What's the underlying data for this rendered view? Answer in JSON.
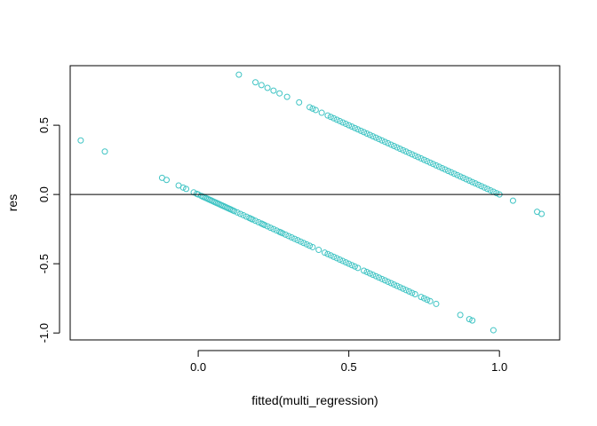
{
  "chart_data": {
    "type": "scatter",
    "title": "",
    "xlabel": "fitted(multi_regression)",
    "ylabel": "res",
    "xlim": [
      -0.425,
      1.2
    ],
    "ylim": [
      -1.05,
      0.93
    ],
    "xticks": [
      0.0,
      0.5,
      1.0
    ],
    "xtick_labels": [
      "0.0",
      "0.5",
      "1.0"
    ],
    "yticks": [
      -1.0,
      -0.5,
      0.0,
      0.5
    ],
    "ytick_labels": [
      "-1.0",
      "-0.5",
      "0.0",
      "0.5"
    ],
    "hline": 0,
    "grid": false,
    "legend": "none",
    "point_color": "#40C4C4",
    "series": [
      {
        "x": [
          -0.39,
          -0.31,
          -0.12,
          -0.105,
          -0.065,
          -0.05,
          -0.04,
          -0.015,
          -0.005,
          0.0,
          0.01,
          0.015,
          0.02,
          0.025,
          0.03,
          0.035,
          0.04,
          0.045,
          0.05,
          0.055,
          0.06,
          0.065,
          0.07,
          0.075,
          0.08,
          0.085,
          0.09,
          0.095,
          0.1,
          0.105,
          0.11,
          0.115,
          0.12,
          0.13,
          0.14,
          0.15,
          0.16,
          0.17,
          0.175,
          0.18,
          0.19,
          0.2,
          0.21,
          0.215,
          0.22,
          0.23,
          0.24,
          0.25,
          0.26,
          0.27,
          0.275,
          0.28,
          0.29,
          0.3,
          0.31,
          0.32,
          0.33,
          0.34,
          0.35,
          0.36,
          0.37,
          0.38,
          0.4,
          0.42,
          0.43,
          0.44,
          0.45,
          0.46,
          0.47,
          0.48,
          0.49,
          0.5,
          0.51,
          0.52,
          0.53,
          0.55,
          0.56,
          0.57,
          0.58,
          0.59,
          0.6,
          0.61,
          0.62,
          0.63,
          0.64,
          0.65,
          0.66,
          0.67,
          0.68,
          0.69,
          0.7,
          0.71,
          0.72,
          0.74,
          0.75,
          0.76,
          0.77,
          0.79,
          0.87,
          0.9,
          0.91,
          0.98
        ],
        "y": [
          0.39,
          0.31,
          0.12,
          0.105,
          0.065,
          0.05,
          0.04,
          0.015,
          0.005,
          0.0,
          -0.01,
          -0.015,
          -0.02,
          -0.025,
          -0.03,
          -0.035,
          -0.04,
          -0.045,
          -0.05,
          -0.055,
          -0.06,
          -0.065,
          -0.07,
          -0.075,
          -0.08,
          -0.085,
          -0.09,
          -0.095,
          -0.1,
          -0.105,
          -0.11,
          -0.115,
          -0.12,
          -0.13,
          -0.14,
          -0.15,
          -0.16,
          -0.17,
          -0.175,
          -0.18,
          -0.19,
          -0.2,
          -0.21,
          -0.215,
          -0.22,
          -0.23,
          -0.24,
          -0.25,
          -0.26,
          -0.27,
          -0.275,
          -0.28,
          -0.29,
          -0.3,
          -0.31,
          -0.32,
          -0.33,
          -0.34,
          -0.35,
          -0.36,
          -0.37,
          -0.38,
          -0.4,
          -0.42,
          -0.43,
          -0.44,
          -0.45,
          -0.46,
          -0.47,
          -0.48,
          -0.49,
          -0.5,
          -0.51,
          -0.52,
          -0.53,
          -0.55,
          -0.56,
          -0.57,
          -0.58,
          -0.59,
          -0.6,
          -0.61,
          -0.62,
          -0.63,
          -0.64,
          -0.65,
          -0.66,
          -0.67,
          -0.68,
          -0.69,
          -0.7,
          -0.71,
          -0.72,
          -0.74,
          -0.75,
          -0.76,
          -0.77,
          -0.79,
          -0.87,
          -0.9,
          -0.91,
          -0.98
        ]
      },
      {
        "x": [
          0.135,
          0.19,
          0.21,
          0.23,
          0.25,
          0.27,
          0.295,
          0.335,
          0.37,
          0.38,
          0.39,
          0.41,
          0.43,
          0.44,
          0.45,
          0.46,
          0.47,
          0.48,
          0.49,
          0.5,
          0.51,
          0.52,
          0.53,
          0.54,
          0.55,
          0.56,
          0.57,
          0.58,
          0.59,
          0.6,
          0.61,
          0.62,
          0.63,
          0.64,
          0.65,
          0.66,
          0.67,
          0.68,
          0.69,
          0.7,
          0.71,
          0.72,
          0.73,
          0.74,
          0.75,
          0.76,
          0.77,
          0.78,
          0.79,
          0.8,
          0.81,
          0.82,
          0.83,
          0.84,
          0.85,
          0.86,
          0.87,
          0.88,
          0.89,
          0.9,
          0.91,
          0.92,
          0.93,
          0.94,
          0.95,
          0.96,
          0.97,
          0.98,
          0.99,
          1.0,
          1.045,
          1.125,
          1.14
        ],
        "y": [
          0.865,
          0.81,
          0.79,
          0.77,
          0.75,
          0.73,
          0.705,
          0.665,
          0.63,
          0.62,
          0.61,
          0.59,
          0.57,
          0.56,
          0.55,
          0.54,
          0.53,
          0.52,
          0.51,
          0.5,
          0.49,
          0.48,
          0.47,
          0.46,
          0.45,
          0.44,
          0.43,
          0.42,
          0.41,
          0.4,
          0.39,
          0.38,
          0.37,
          0.36,
          0.35,
          0.34,
          0.33,
          0.32,
          0.31,
          0.3,
          0.29,
          0.28,
          0.27,
          0.26,
          0.25,
          0.24,
          0.23,
          0.22,
          0.21,
          0.2,
          0.19,
          0.18,
          0.17,
          0.16,
          0.15,
          0.14,
          0.13,
          0.12,
          0.11,
          0.1,
          0.09,
          0.08,
          0.07,
          0.06,
          0.05,
          0.04,
          0.03,
          0.02,
          0.01,
          0.0,
          -0.045,
          -0.125,
          -0.14
        ]
      }
    ]
  }
}
